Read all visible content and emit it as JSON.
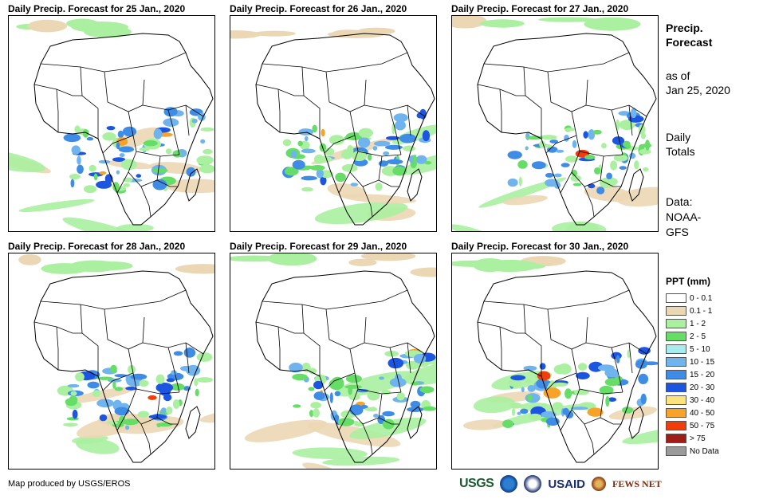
{
  "panels": [
    {
      "title": "Daily Precip. Forecast for 25 Jan., 2020"
    },
    {
      "title": "Daily Precip. Forecast for 26 Jan., 2020"
    },
    {
      "title": "Daily Precip. Forecast for 27 Jan., 2020"
    },
    {
      "title": "Daily Precip. Forecast for 28 Jan., 2020"
    },
    {
      "title": "Daily Precip. Forecast for 29 Jan., 2020"
    },
    {
      "title": "Daily Precip. Forecast for 30 Jan., 2020"
    }
  ],
  "side": {
    "heading1": "Precip.",
    "heading2": "Forecast",
    "asof1": "as of",
    "asof2": "Jan 25, 2020",
    "totals1": "Daily",
    "totals2": "Totals",
    "data1": "Data:",
    "data2": "NOAA-",
    "data3": "GFS"
  },
  "legend": {
    "title": "PPT (mm)",
    "items": [
      {
        "label": "0 - 0.1",
        "color": "#ffffff"
      },
      {
        "label": "0.1 - 1",
        "color": "#ecd7b4"
      },
      {
        "label": "1 - 2",
        "color": "#aaf0a0"
      },
      {
        "label": "2 - 5",
        "color": "#66dd66"
      },
      {
        "label": "5 - 10",
        "color": "#a8ecf0"
      },
      {
        "label": "10 - 15",
        "color": "#6fb4ee"
      },
      {
        "label": "15 - 20",
        "color": "#3f8ce6"
      },
      {
        "label": "20 - 30",
        "color": "#1c55e0"
      },
      {
        "label": "30 - 40",
        "color": "#fde37e"
      },
      {
        "label": "40 - 50",
        "color": "#f7a32a"
      },
      {
        "label": "50 - 75",
        "color": "#f03d0e"
      },
      {
        "label": "> 75",
        "color": "#a01c16"
      },
      {
        "label": "No Data",
        "color": "#9a9a9a"
      }
    ]
  },
  "footer": {
    "credit": "Map produced by USGS/EROS"
  },
  "logos": {
    "usgs": "USGS",
    "usaid": "USAID",
    "fews": "FEWS NET"
  }
}
